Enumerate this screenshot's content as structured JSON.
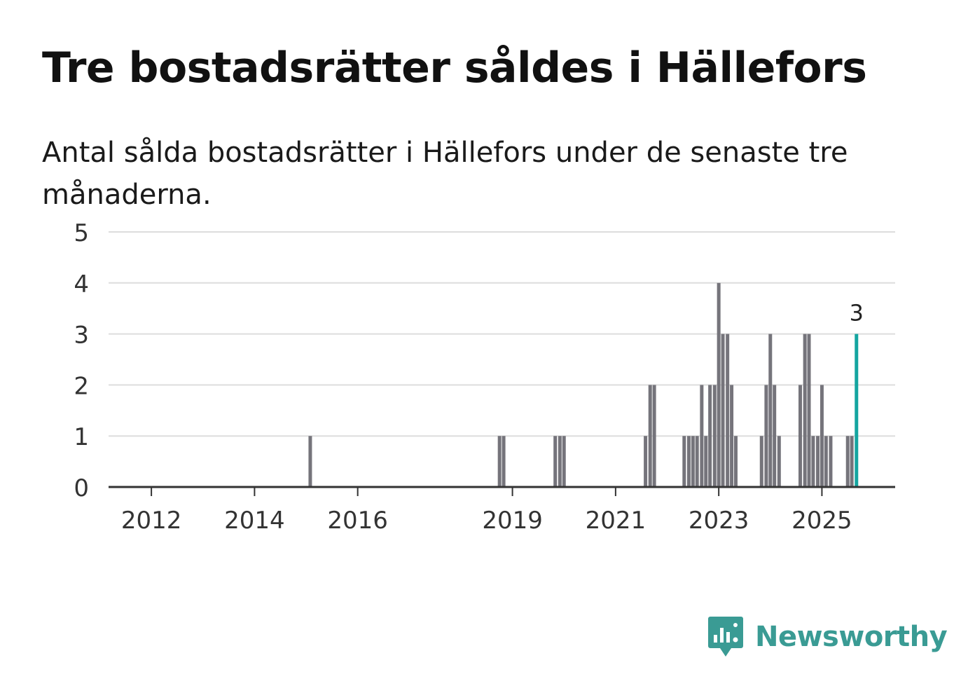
{
  "header": {
    "title": "Tre bostadsrätter såldes i Hällefors",
    "subtitle": "Antal sålda bostadsrätter i Hällefors under de senaste tre månaderna."
  },
  "brand": {
    "name": "Newsworthy",
    "logo_icon": "newsworthy-logo-icon",
    "color": "#3a9b94"
  },
  "colors": {
    "bar": "#75747b",
    "highlight": "#14a5a0",
    "grid": "#dddddd",
    "axis": "#333333"
  },
  "chart_data": {
    "type": "bar",
    "title": "Tre bostadsrätter såldes i Hällefors",
    "xlabel": "",
    "ylabel": "",
    "ylim": [
      0,
      5
    ],
    "yticks": [
      0,
      1,
      2,
      3,
      4,
      5
    ],
    "xlim": [
      2011.17,
      2026.42
    ],
    "xticks": [
      2012,
      2014,
      2016,
      2019,
      2021,
      2023,
      2025
    ],
    "x_label_format": "year",
    "annotation": "3",
    "series": [
      {
        "name": "Antal sålda bostadsrätter",
        "bars": [
          {
            "x": 2015.08,
            "value": 1
          },
          {
            "x": 2018.75,
            "value": 1
          },
          {
            "x": 2018.83,
            "value": 1
          },
          {
            "x": 2019.83,
            "value": 1
          },
          {
            "x": 2019.92,
            "value": 1
          },
          {
            "x": 2020.0,
            "value": 1
          },
          {
            "x": 2021.58,
            "value": 1
          },
          {
            "x": 2021.67,
            "value": 2
          },
          {
            "x": 2021.75,
            "value": 2
          },
          {
            "x": 2022.33,
            "value": 1
          },
          {
            "x": 2022.42,
            "value": 1
          },
          {
            "x": 2022.5,
            "value": 1
          },
          {
            "x": 2022.58,
            "value": 1
          },
          {
            "x": 2022.67,
            "value": 2
          },
          {
            "x": 2022.75,
            "value": 1
          },
          {
            "x": 2022.83,
            "value": 2
          },
          {
            "x": 2022.92,
            "value": 2
          },
          {
            "x": 2023.0,
            "value": 4
          },
          {
            "x": 2023.08,
            "value": 3
          },
          {
            "x": 2023.17,
            "value": 3
          },
          {
            "x": 2023.25,
            "value": 2
          },
          {
            "x": 2023.33,
            "value": 1
          },
          {
            "x": 2023.83,
            "value": 1
          },
          {
            "x": 2023.92,
            "value": 2
          },
          {
            "x": 2024.0,
            "value": 3
          },
          {
            "x": 2024.08,
            "value": 2
          },
          {
            "x": 2024.17,
            "value": 1
          },
          {
            "x": 2024.58,
            "value": 2
          },
          {
            "x": 2024.67,
            "value": 3
          },
          {
            "x": 2024.75,
            "value": 3
          },
          {
            "x": 2024.83,
            "value": 1
          },
          {
            "x": 2024.92,
            "value": 1
          },
          {
            "x": 2025.0,
            "value": 2
          },
          {
            "x": 2025.08,
            "value": 1
          },
          {
            "x": 2025.17,
            "value": 1
          },
          {
            "x": 2025.5,
            "value": 1
          },
          {
            "x": 2025.58,
            "value": 1
          },
          {
            "x": 2025.67,
            "value": 3,
            "highlight": true
          }
        ]
      }
    ]
  }
}
